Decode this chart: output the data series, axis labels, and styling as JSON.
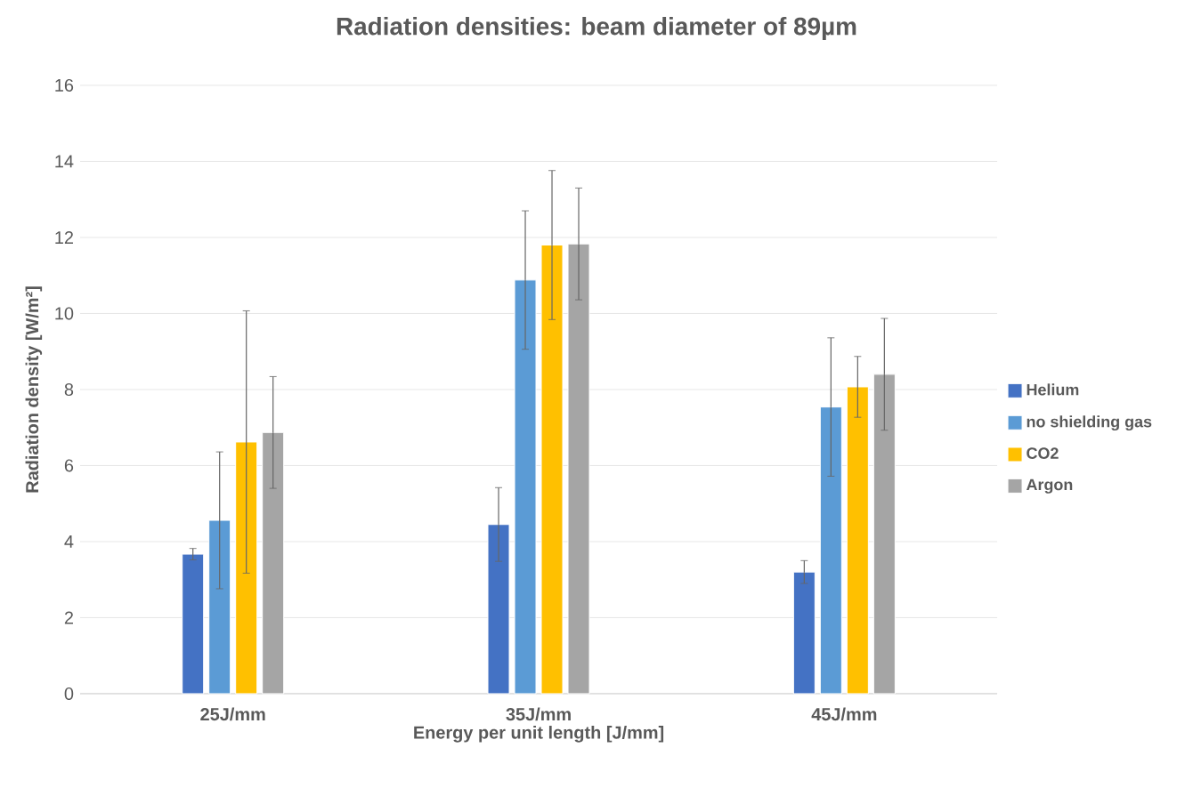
{
  "chart_data": {
    "type": "bar",
    "title": "Radiation densities: beam diameter of 89µm",
    "xlabel": "Energy per unit length [J/mm]",
    "ylabel": "Radiation density [W/m²]",
    "categories": [
      "25J/mm",
      "35J/mm",
      "45J/mm"
    ],
    "series": [
      {
        "name": "Helium",
        "color": "#4472c4",
        "values": [
          3.67,
          4.45,
          3.2
        ],
        "errors": [
          0.15,
          0.97,
          0.3
        ]
      },
      {
        "name": "no shielding gas",
        "color": "#5b9bd5",
        "values": [
          4.56,
          10.88,
          7.54
        ],
        "errors": [
          1.8,
          1.82,
          1.82
        ]
      },
      {
        "name": "CO2",
        "color": "#ffc000",
        "values": [
          6.62,
          11.8,
          8.07
        ],
        "errors": [
          3.45,
          1.96,
          0.8
        ]
      },
      {
        "name": "Argon",
        "color": "#a5a5a5",
        "values": [
          6.87,
          11.83,
          8.4
        ],
        "errors": [
          1.47,
          1.47,
          1.47
        ]
      }
    ],
    "ylim": [
      0,
      16
    ],
    "yticks": [
      0,
      2,
      4,
      6,
      8,
      10,
      12,
      14,
      16
    ],
    "grid": "y",
    "legend": "right"
  }
}
